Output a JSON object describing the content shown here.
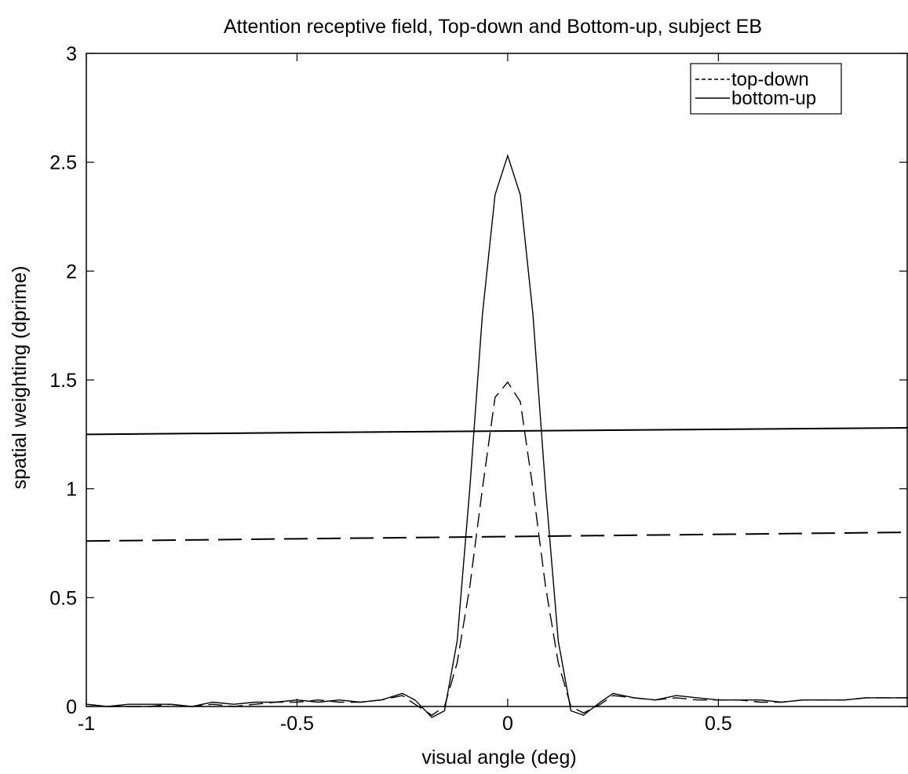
{
  "chart_data": {
    "type": "line",
    "title": "Attention receptive field, Top-down and Bottom-up, subject EB",
    "xlabel": "visual angle (deg)",
    "ylabel": "spatial weighting (dprime)",
    "xlim": [
      -1,
      0.95
    ],
    "ylim": [
      0,
      3
    ],
    "x_ticks": [
      -1,
      -0.5,
      0,
      0.5
    ],
    "x_tick_labels": [
      "-1",
      "-0.5",
      "0",
      "0.5"
    ],
    "y_ticks": [
      0,
      0.5,
      1,
      1.5,
      2,
      2.5,
      3
    ],
    "y_tick_labels": [
      "0",
      "0.5",
      "1",
      "1.5",
      "2",
      "2.5",
      "3"
    ],
    "grid": false,
    "legend_position": "top-right",
    "series": [
      {
        "name": "top-down",
        "style": "dashed",
        "color": "#000000",
        "x": [
          -1.0,
          -0.95,
          -0.9,
          -0.85,
          -0.8,
          -0.75,
          -0.7,
          -0.65,
          -0.6,
          -0.55,
          -0.5,
          -0.45,
          -0.4,
          -0.35,
          -0.3,
          -0.25,
          -0.22,
          -0.18,
          -0.15,
          -0.12,
          -0.09,
          -0.06,
          -0.03,
          0.0,
          0.03,
          0.06,
          0.09,
          0.12,
          0.15,
          0.18,
          0.22,
          0.25,
          0.3,
          0.35,
          0.4,
          0.45,
          0.5,
          0.55,
          0.6,
          0.65,
          0.7,
          0.75,
          0.8,
          0.85,
          0.9,
          0.95
        ],
        "y": [
          0.01,
          0.0,
          0.0,
          0.0,
          0.01,
          0.0,
          0.01,
          0.0,
          0.01,
          0.02,
          0.02,
          0.03,
          0.02,
          0.02,
          0.03,
          0.05,
          0.01,
          -0.04,
          0.0,
          0.2,
          0.55,
          1.0,
          1.42,
          1.49,
          1.4,
          1.0,
          0.55,
          0.2,
          0.0,
          -0.03,
          0.01,
          0.05,
          0.04,
          0.03,
          0.04,
          0.03,
          0.03,
          0.03,
          0.02,
          0.02,
          0.03,
          0.03,
          0.03,
          0.04,
          0.04,
          0.04
        ]
      },
      {
        "name": "bottom-up",
        "style": "solid",
        "color": "#000000",
        "x": [
          -1.0,
          -0.95,
          -0.9,
          -0.85,
          -0.8,
          -0.75,
          -0.7,
          -0.65,
          -0.6,
          -0.55,
          -0.5,
          -0.45,
          -0.4,
          -0.35,
          -0.3,
          -0.25,
          -0.22,
          -0.18,
          -0.15,
          -0.12,
          -0.09,
          -0.06,
          -0.03,
          0.0,
          0.03,
          0.06,
          0.09,
          0.12,
          0.15,
          0.18,
          0.22,
          0.25,
          0.3,
          0.35,
          0.4,
          0.45,
          0.5,
          0.55,
          0.6,
          0.65,
          0.7,
          0.75,
          0.8,
          0.85,
          0.9,
          0.95
        ],
        "y": [
          0.01,
          0.0,
          0.01,
          0.01,
          0.01,
          0.0,
          0.02,
          0.01,
          0.02,
          0.02,
          0.03,
          0.02,
          0.03,
          0.02,
          0.03,
          0.06,
          0.03,
          -0.05,
          -0.02,
          0.3,
          1.0,
          1.8,
          2.35,
          2.53,
          2.35,
          1.8,
          1.0,
          0.3,
          -0.02,
          -0.04,
          0.02,
          0.06,
          0.04,
          0.03,
          0.05,
          0.04,
          0.03,
          0.03,
          0.03,
          0.02,
          0.03,
          0.03,
          0.03,
          0.04,
          0.04,
          0.04
        ]
      }
    ],
    "reference_lines": [
      {
        "style": "solid",
        "x": [
          -1,
          0.95
        ],
        "y": [
          1.25,
          1.28
        ]
      },
      {
        "style": "dashed",
        "x": [
          -1,
          0.95
        ],
        "y": [
          0.76,
          0.8
        ]
      }
    ]
  }
}
